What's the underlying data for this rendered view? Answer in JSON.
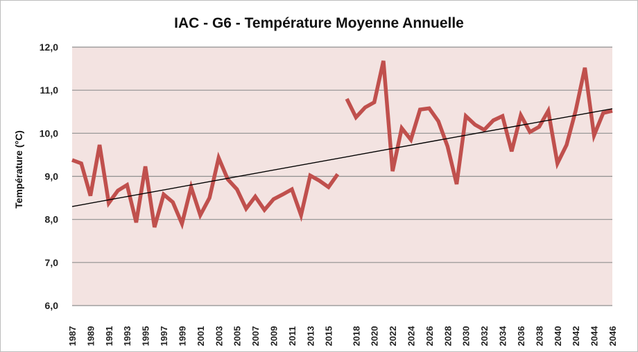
{
  "chart_data": {
    "type": "line",
    "title": "IAC - G6 - Température Moyenne Annuelle",
    "xlabel": "",
    "ylabel": "Température (°C)",
    "ylim": [
      6.0,
      12.0
    ],
    "yticks": [
      "6,0",
      "7,0",
      "8,0",
      "9,0",
      "10,0",
      "11,0",
      "12,0"
    ],
    "xticks": [
      "1987",
      "1989",
      "1991",
      "1993",
      "1995",
      "1997",
      "1999",
      "2001",
      "2003",
      "2005",
      "2007",
      "2009",
      "2011",
      "2013",
      "2015",
      "2018",
      "2020",
      "2022",
      "2024",
      "2026",
      "2028",
      "2030",
      "2032",
      "2034",
      "2036",
      "2038",
      "2040",
      "2042",
      "2044",
      "2046"
    ],
    "grid": "horizontal",
    "plot_background": "#f3e3e1",
    "series_color": "#c0504d",
    "trend_color": "#000000",
    "series": [
      {
        "points": [
          [
            1987,
            9.38
          ],
          [
            1988,
            9.3
          ],
          [
            1989,
            8.55
          ],
          [
            1990,
            9.73
          ],
          [
            1991,
            8.38
          ],
          [
            1992,
            8.67
          ],
          [
            1993,
            8.8
          ],
          [
            1994,
            7.93
          ],
          [
            1995,
            9.23
          ],
          [
            1996,
            7.82
          ],
          [
            1997,
            8.58
          ],
          [
            1998,
            8.4
          ],
          [
            1999,
            7.9
          ],
          [
            2000,
            8.75
          ],
          [
            2001,
            8.1
          ],
          [
            2002,
            8.5
          ],
          [
            2003,
            9.43
          ],
          [
            2004,
            8.93
          ],
          [
            2005,
            8.7
          ],
          [
            2006,
            8.25
          ],
          [
            2007,
            8.53
          ],
          [
            2008,
            8.22
          ],
          [
            2009,
            8.47
          ],
          [
            2010,
            8.58
          ],
          [
            2011,
            8.7
          ],
          [
            2012,
            8.1
          ],
          [
            2013,
            9.02
          ],
          [
            2014,
            8.9
          ],
          [
            2015,
            8.75
          ],
          [
            2016,
            9.05
          ],
          [
            2017,
            10.8
          ],
          [
            2018,
            10.37
          ],
          [
            2019,
            10.6
          ],
          [
            2020,
            10.72
          ],
          [
            2021,
            11.68
          ],
          [
            2022,
            9.12
          ],
          [
            2023,
            10.12
          ],
          [
            2024,
            9.85
          ],
          [
            2025,
            10.55
          ],
          [
            2026,
            10.58
          ],
          [
            2027,
            10.28
          ],
          [
            2028,
            9.7
          ],
          [
            2029,
            8.82
          ],
          [
            2030,
            10.4
          ],
          [
            2031,
            10.2
          ],
          [
            2032,
            10.08
          ],
          [
            2033,
            10.3
          ],
          [
            2034,
            10.4
          ],
          [
            2035,
            9.58
          ],
          [
            2036,
            10.42
          ],
          [
            2037,
            10.03
          ],
          [
            2038,
            10.15
          ],
          [
            2039,
            10.52
          ],
          [
            2040,
            9.3
          ],
          [
            2041,
            9.73
          ],
          [
            2042,
            10.53
          ],
          [
            2043,
            11.52
          ],
          [
            2044,
            9.95
          ],
          [
            2045,
            10.47
          ],
          [
            2046,
            10.52
          ]
        ],
        "gap_after": 2016
      }
    ],
    "trendline": {
      "from": [
        1987,
        8.3
      ],
      "to": [
        2046,
        10.57
      ]
    }
  }
}
